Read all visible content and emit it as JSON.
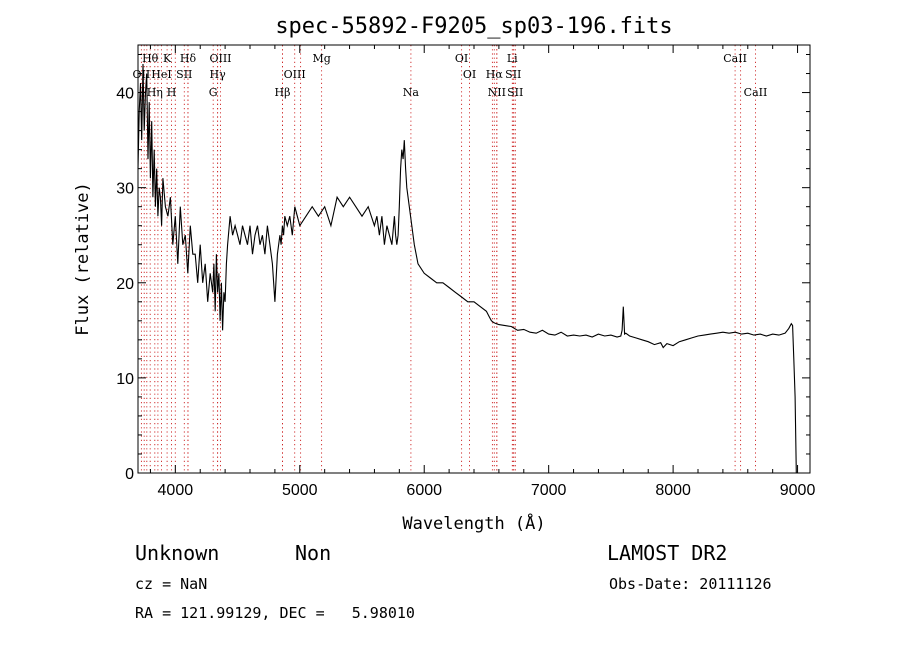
{
  "chart_data": {
    "type": "line",
    "title": "spec-55892-F9205_sp03-196.fits",
    "xlabel": "Wavelength (Å)",
    "ylabel": "Flux (relative)",
    "xlim": [
      3700,
      9100
    ],
    "ylim": [
      0,
      45
    ],
    "xticks": [
      4000,
      5000,
      6000,
      7000,
      8000,
      9000
    ],
    "yticks": [
      0,
      10,
      20,
      30,
      40
    ],
    "grid": false,
    "series": [
      {
        "color": "#000000",
        "x": [
          3700,
          3710,
          3720,
          3730,
          3740,
          3750,
          3760,
          3770,
          3780,
          3790,
          3800,
          3810,
          3820,
          3830,
          3840,
          3850,
          3860,
          3870,
          3880,
          3890,
          3900,
          3920,
          3940,
          3960,
          3980,
          4000,
          4020,
          4040,
          4060,
          4080,
          4100,
          4120,
          4140,
          4160,
          4180,
          4200,
          4220,
          4240,
          4260,
          4280,
          4300,
          4310,
          4320,
          4330,
          4340,
          4350,
          4360,
          4370,
          4380,
          4390,
          4400,
          4410,
          4420,
          4440,
          4460,
          4480,
          4500,
          4520,
          4540,
          4560,
          4580,
          4600,
          4620,
          4640,
          4660,
          4680,
          4700,
          4720,
          4740,
          4760,
          4780,
          4800,
          4820,
          4840,
          4850,
          4860,
          4870,
          4880,
          4900,
          4920,
          4940,
          4960,
          4980,
          5000,
          5050,
          5100,
          5150,
          5200,
          5250,
          5300,
          5350,
          5400,
          5450,
          5500,
          5550,
          5600,
          5620,
          5640,
          5660,
          5680,
          5700,
          5720,
          5740,
          5760,
          5770,
          5780,
          5790,
          5800,
          5810,
          5820,
          5830,
          5840,
          5850,
          5860,
          5880,
          5900,
          5920,
          5950,
          6000,
          6050,
          6100,
          6150,
          6200,
          6250,
          6300,
          6350,
          6400,
          6450,
          6500,
          6520,
          6540,
          6560,
          6580,
          6600,
          6650,
          6700,
          6750,
          6800,
          6850,
          6900,
          6950,
          7000,
          7050,
          7100,
          7150,
          7200,
          7250,
          7300,
          7350,
          7400,
          7450,
          7500,
          7550,
          7580,
          7590,
          7600,
          7610,
          7620,
          7650,
          7700,
          7750,
          7800,
          7850,
          7900,
          7920,
          7950,
          8000,
          8050,
          8100,
          8150,
          8200,
          8250,
          8300,
          8350,
          8400,
          8450,
          8500,
          8550,
          8600,
          8650,
          8700,
          8750,
          8800,
          8850,
          8900,
          8930,
          8950,
          8960,
          8970,
          8980,
          8990
        ],
        "y": [
          32,
          38,
          41,
          35,
          43,
          36,
          40,
          42,
          33,
          39,
          31,
          37,
          29,
          34,
          28,
          32,
          27,
          30,
          29,
          26,
          31,
          28,
          27,
          29,
          24,
          27,
          22,
          28,
          24,
          25,
          21,
          26,
          23,
          23,
          20,
          24,
          20,
          22,
          18,
          21,
          19,
          22,
          17,
          23,
          19,
          21,
          16,
          20,
          15,
          19,
          18,
          22,
          24,
          27,
          25,
          26,
          25,
          24,
          26,
          25,
          24,
          26,
          23,
          25,
          26,
          24,
          25,
          23,
          26,
          24,
          22,
          18,
          23,
          25,
          24,
          26,
          25,
          27,
          26,
          27,
          25,
          28,
          27,
          26,
          27,
          28,
          27,
          28,
          26,
          29,
          28,
          29,
          28,
          27,
          28,
          26,
          27,
          25,
          27,
          24,
          26,
          25,
          24,
          27,
          25,
          24,
          25,
          28,
          32,
          34,
          33,
          35,
          32,
          30,
          28,
          26,
          24,
          22,
          21,
          20.5,
          20,
          20,
          19.5,
          19,
          18.5,
          18,
          18,
          17.5,
          17,
          16.5,
          16,
          15.8,
          15.7,
          15.6,
          15.5,
          15.4,
          15,
          15.1,
          14.8,
          14.7,
          15,
          14.6,
          14.5,
          14.8,
          14.4,
          14.5,
          14.4,
          14.5,
          14.3,
          14.6,
          14.4,
          14.5,
          14.3,
          14.4,
          15,
          17.5,
          14.6,
          14.7,
          14.4,
          14.2,
          14,
          13.8,
          13.5,
          13.7,
          13.2,
          13.6,
          13.4,
          13.8,
          14,
          14.2,
          14.4,
          14.5,
          14.6,
          14.7,
          14.8,
          14.7,
          14.8,
          14.6,
          14.7,
          14.5,
          14.6,
          14.4,
          14.6,
          14.5,
          14.7,
          15.2,
          15.7,
          15.5,
          12,
          8,
          0
        ]
      }
    ],
    "lines": [
      {
        "label": "Hθ",
        "row": 0,
        "wave": 3798
      },
      {
        "label": "K",
        "row": 0,
        "wave": 3934
      },
      {
        "label": "Hδ",
        "row": 0,
        "wave": 4102
      },
      {
        "label": "OIII",
        "row": 0,
        "wave": 4363
      },
      {
        "label": "Mg",
        "row": 0,
        "wave": 5175
      },
      {
        "label": "OI",
        "row": 0,
        "wave": 6300
      },
      {
        "label": "Li",
        "row": 0,
        "wave": 6708
      },
      {
        "label": "CaII",
        "row": 0,
        "wave": 8498
      },
      {
        "label": "OII",
        "row": 1,
        "wave": 3727
      },
      {
        "label": "HeI",
        "row": 1,
        "wave": 3889
      },
      {
        "label": "SII",
        "row": 1,
        "wave": 4072
      },
      {
        "label": "Hγ",
        "row": 1,
        "wave": 4340
      },
      {
        "label": "OIII",
        "row": 1,
        "wave": 4959
      },
      {
        "label": "OI",
        "row": 1,
        "wave": 6364
      },
      {
        "label": "Hα",
        "row": 1,
        "wave": 6563
      },
      {
        "label": "SII",
        "row": 1,
        "wave": 6716
      },
      {
        "label": "Hη",
        "row": 2,
        "wave": 3835
      },
      {
        "label": "H",
        "row": 2,
        "wave": 3969
      },
      {
        "label": "G",
        "row": 2,
        "wave": 4304
      },
      {
        "label": "Hβ",
        "row": 2,
        "wave": 4861
      },
      {
        "label": "Na",
        "row": 2,
        "wave": 5893
      },
      {
        "label": "NII",
        "row": 2,
        "wave": 6583
      },
      {
        "label": "SII",
        "row": 2,
        "wave": 6731
      },
      {
        "label": "CaII",
        "row": 2,
        "wave": 8662
      }
    ],
    "extra_line_marks": [
      3750,
      3771,
      3860,
      4000,
      4101,
      4340,
      4861,
      5007,
      6548,
      6583,
      6716,
      6731,
      8542
    ],
    "line_mark_color": "#cc2222"
  },
  "footer": {
    "class_label": "Unknown",
    "subclass_label": "Non",
    "survey": "LAMOST DR2",
    "cz": "cz = NaN",
    "obs_date": "Obs-Date: 20111126",
    "coords": "RA = 121.99129, DEC =   5.98010"
  }
}
